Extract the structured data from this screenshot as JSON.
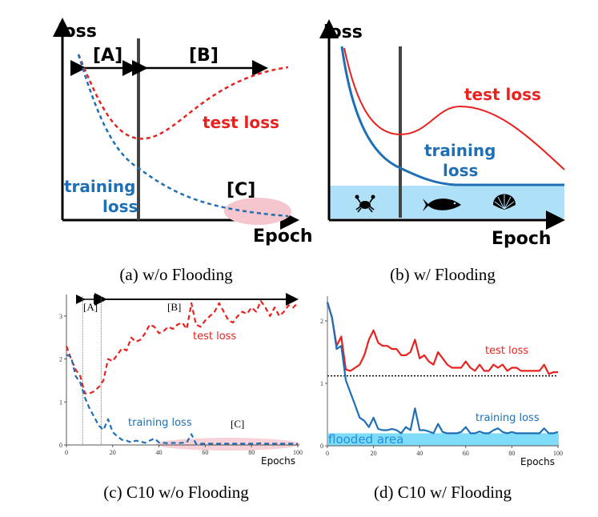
{
  "colors": {
    "test": "#e8231f",
    "train": "#1f6fb4",
    "flood": "#7fdcf8",
    "flood_schematic": "#aee0f8",
    "region_c": "#f6c6cf"
  },
  "panels": {
    "a": {
      "caption": "(a) w/o Flooding",
      "ylabel": "loss",
      "xlabel": "Epoch",
      "region_a": "[A]",
      "region_b": "[B]",
      "region_c": "[C]",
      "test_label": "test loss",
      "train_label_1": "training",
      "train_label_2": "loss"
    },
    "b": {
      "caption": "(b) w/ Flooding",
      "ylabel": "loss",
      "xlabel": "Epoch",
      "test_label": "test loss",
      "train_label_1": "training",
      "train_label_2": "loss",
      "icons": [
        "crab-icon",
        "fish-icon",
        "shell-icon"
      ]
    },
    "c": {
      "caption": "(c) C10 w/o Flooding",
      "xlabel": "Epochs",
      "region_a": "[A]",
      "region_b": "[B]",
      "region_c": "[C]",
      "test_label": "test loss",
      "train_label": "training loss"
    },
    "d": {
      "caption": "(d) C10 w/ Flooding",
      "xlabel": "Epochs",
      "test_label": "test loss",
      "train_label": "training loss",
      "flood_label": "flooded area"
    }
  },
  "chart_data": [
    {
      "panel": "c",
      "type": "line",
      "xlabel": "Epochs",
      "xlim": [
        0,
        100
      ],
      "ylim": [
        0,
        3.4
      ],
      "xticks": [
        0,
        20,
        40,
        60,
        80,
        100
      ],
      "yticks": [
        0,
        1,
        2,
        3
      ],
      "region_lines_x": [
        7,
        15
      ],
      "x": [
        0,
        2,
        4,
        6,
        8,
        10,
        12,
        14,
        16,
        18,
        20,
        22,
        24,
        26,
        28,
        30,
        32,
        34,
        36,
        38,
        40,
        42,
        44,
        46,
        48,
        50,
        52,
        54,
        56,
        58,
        60,
        62,
        64,
        66,
        68,
        70,
        72,
        74,
        76,
        78,
        80,
        82,
        84,
        86,
        88,
        90,
        92,
        94,
        96,
        98,
        100
      ],
      "series": [
        {
          "name": "test loss",
          "style": "dashed",
          "values": [
            2.3,
            2.0,
            1.75,
            1.6,
            1.2,
            1.2,
            1.25,
            1.35,
            1.5,
            2.0,
            1.95,
            2.1,
            2.25,
            2.2,
            2.5,
            2.4,
            2.45,
            2.6,
            2.8,
            2.75,
            2.6,
            2.65,
            2.75,
            2.7,
            2.8,
            2.85,
            2.7,
            3.3,
            2.8,
            2.75,
            2.9,
            3.0,
            3.1,
            3.3,
            3.1,
            2.9,
            2.85,
            3.0,
            3.1,
            3.05,
            3.2,
            3.1,
            3.35,
            3.2,
            3.0,
            3.2,
            3.0,
            3.1,
            3.25,
            3.2,
            3.3
          ]
        },
        {
          "name": "training loss",
          "style": "dashed",
          "values": [
            2.1,
            2.05,
            1.6,
            1.45,
            1.1,
            0.85,
            0.65,
            0.45,
            0.35,
            0.6,
            0.3,
            0.2,
            0.12,
            0.1,
            0.06,
            0.1,
            0.08,
            0.05,
            0.1,
            0.15,
            0.06,
            0.05,
            0.04,
            0.05,
            0.04,
            0.05,
            0.06,
            0.25,
            0.03,
            0.03,
            0.03,
            0.03,
            0.03,
            0.03,
            0.03,
            0.03,
            0.03,
            0.03,
            0.03,
            0.03,
            0.03,
            0.03,
            0.04,
            0.03,
            0.03,
            0.03,
            0.03,
            0.03,
            0.03,
            0.03,
            0.03
          ]
        }
      ]
    },
    {
      "panel": "d",
      "type": "line",
      "xlabel": "Epochs",
      "xlim": [
        0,
        100
      ],
      "ylim": [
        0,
        2.4
      ],
      "xticks": [
        0,
        20,
        40,
        60,
        80,
        100
      ],
      "yticks": [
        0,
        1,
        2
      ],
      "flood_level": 0.2,
      "reference_line_y": 1.12,
      "x": [
        0,
        2,
        4,
        6,
        8,
        10,
        12,
        14,
        16,
        18,
        20,
        22,
        24,
        26,
        28,
        30,
        32,
        34,
        36,
        38,
        40,
        42,
        44,
        46,
        48,
        50,
        52,
        54,
        56,
        58,
        60,
        62,
        64,
        66,
        68,
        70,
        72,
        74,
        76,
        78,
        80,
        82,
        84,
        86,
        88,
        90,
        92,
        94,
        96,
        98,
        100
      ],
      "series": [
        {
          "name": "test loss",
          "style": "solid",
          "values": [
            2.3,
            2.05,
            1.6,
            1.75,
            1.22,
            1.2,
            1.25,
            1.3,
            1.45,
            1.7,
            1.85,
            1.65,
            1.6,
            1.6,
            1.55,
            1.55,
            1.45,
            1.45,
            1.5,
            1.7,
            1.4,
            1.45,
            1.35,
            1.3,
            1.5,
            1.4,
            1.3,
            1.25,
            1.25,
            1.25,
            1.35,
            1.25,
            1.2,
            1.3,
            1.2,
            1.2,
            1.3,
            1.25,
            1.3,
            1.2,
            1.25,
            1.25,
            1.2,
            1.2,
            1.2,
            1.2,
            1.2,
            1.3,
            1.15,
            1.18,
            1.18
          ]
        },
        {
          "name": "training loss",
          "style": "solid",
          "values": [
            2.3,
            2.05,
            1.55,
            1.6,
            1.05,
            0.85,
            0.65,
            0.45,
            0.4,
            0.3,
            0.45,
            0.27,
            0.25,
            0.25,
            0.27,
            0.25,
            0.2,
            0.3,
            0.25,
            0.6,
            0.25,
            0.25,
            0.23,
            0.2,
            0.35,
            0.22,
            0.2,
            0.2,
            0.2,
            0.22,
            0.3,
            0.2,
            0.2,
            0.23,
            0.2,
            0.2,
            0.25,
            0.28,
            0.22,
            0.2,
            0.22,
            0.2,
            0.2,
            0.2,
            0.2,
            0.2,
            0.2,
            0.28,
            0.2,
            0.2,
            0.22
          ]
        }
      ]
    }
  ]
}
